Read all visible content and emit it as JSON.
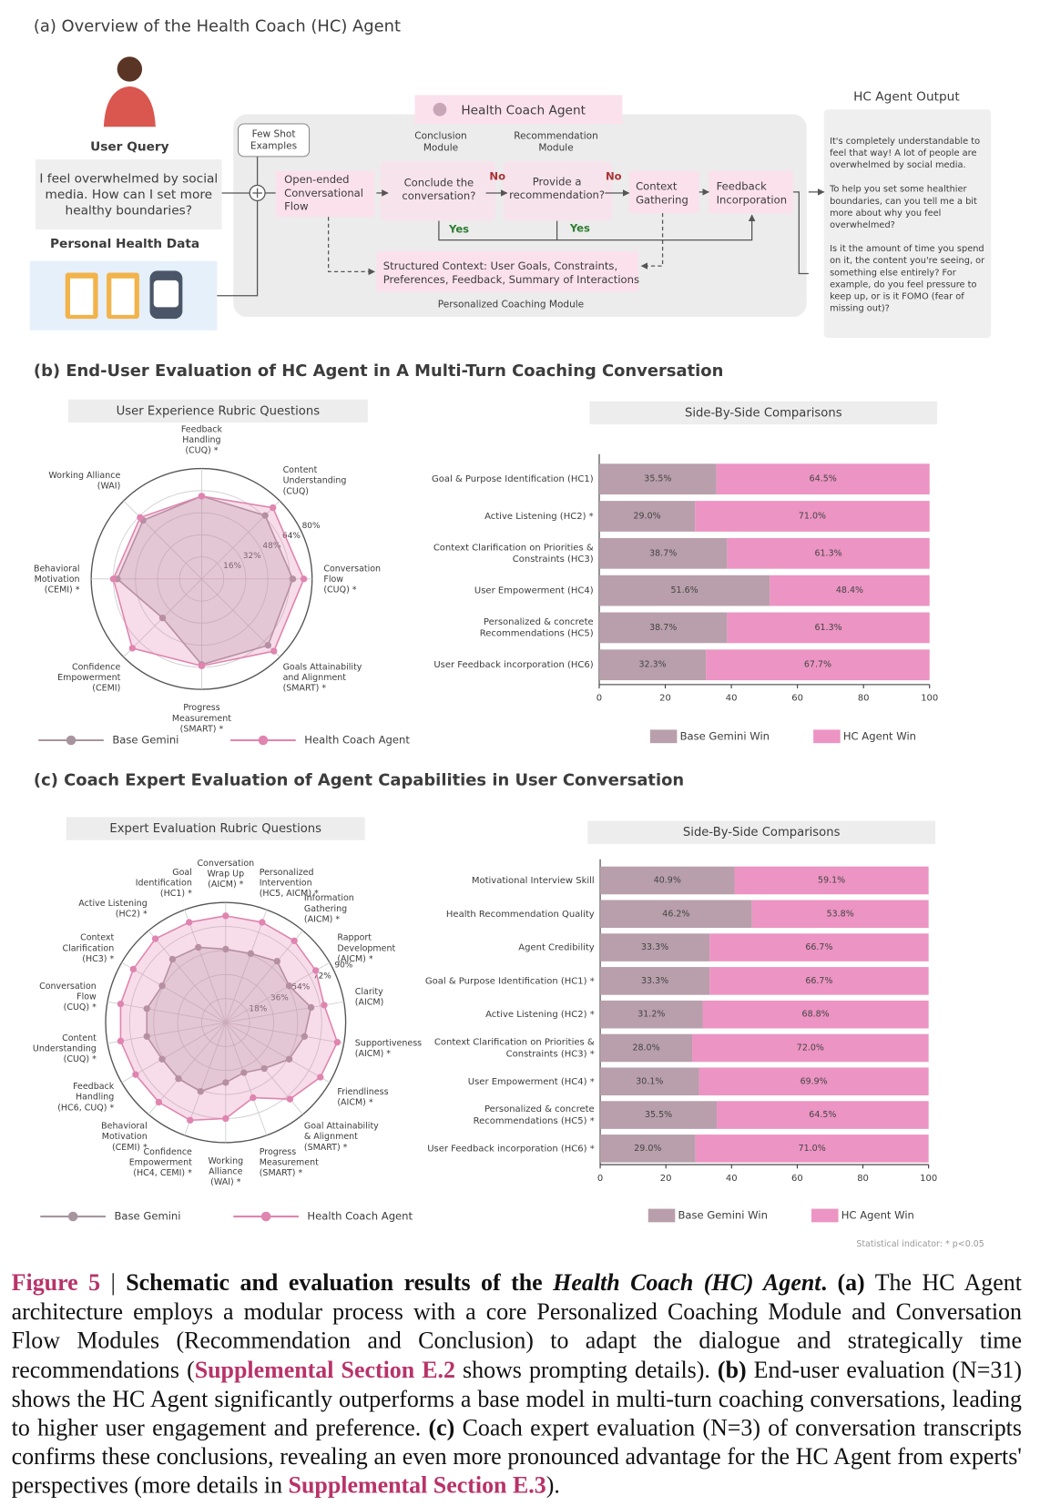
{
  "figure": {
    "panel_a": {
      "title": "(a) Overview of the Health Coach (HC) Agent",
      "user_query_label": "User Query",
      "user_query": "I feel overwhelmed by social\nmedia. How can I set more\nhealthy boundaries?",
      "personal_health_data": "Personal Health Data",
      "few_shot": "Few Shot\nExamples",
      "agent_title": "Health Coach Agent",
      "conclusion_module": "Conclusion\nModule",
      "recommendation_module": "Recommendation\nModule",
      "open_ended": "Open-ended\nConversational\nFlow",
      "conclude_q": "Conclude the\nconversation?",
      "provide_q": "Provide a\nrecommendation?",
      "no_1": "No",
      "no_2": "No",
      "yes_1": "Yes",
      "yes_2": "Yes",
      "context_gathering": "Context\nGathering",
      "feedback_incorporation": "Feedback\nIncorporation",
      "structured_context": "Structured Context: User Goals, Constraints,\nPreferences, Feedback, Summary of Interactions",
      "module_label": "Personalized Coaching Module",
      "output_title": "HC Agent Output",
      "output_paragraphs": [
        "It's completely understandable to\nfeel that way!  A lot of people are\noverwhelmed by social media.",
        "To help you set some healthier\nboundaries, can you tell me a bit\nmore about why you feel\noverwhelmed?",
        "Is it the amount of time you spend\non it, the content you're seeing, or\nsomething else entirely? For\nexample, do you feel pressure to\nkeep up, or is it FOMO (fear of\nmissing out)?"
      ]
    },
    "panel_b_title": "(b) End-User Evaluation of HC Agent in A Multi-Turn Coaching Conversation",
    "panel_c_title": "(c) Coach Expert Evaluation of Agent Capabilities in User Conversation",
    "stat_note": "Statistical indicator: * p<0.05",
    "caption": [
      {
        "text": "Figure 5",
        "style": "label"
      },
      {
        "text": " | ",
        "style": "plain"
      },
      {
        "text": "Schematic and evaluation results of the ",
        "style": "bold"
      },
      {
        "text": "Health Coach (HC) Agent",
        "style": "bold-italic"
      },
      {
        "text": ". ",
        "style": "bold"
      },
      {
        "text": "(a)",
        "style": "bold"
      },
      {
        "text": " The HC Agent architecture employs a modular process with a core Personalized Coaching Module and Conversation Flow Modules (Recommendation and Conclusion) to adapt the dialogue and strategically time recommendations (",
        "style": "plain"
      },
      {
        "text": "Supplemental Section E.2",
        "style": "link"
      },
      {
        "text": " shows prompting details). ",
        "style": "plain"
      },
      {
        "text": "(b)",
        "style": "bold"
      },
      {
        "text": " End-user evaluation (N=31) shows the HC Agent significantly outperforms a base model in multi-turn coaching conversations, leading to higher user engagement and preference. ",
        "style": "plain"
      },
      {
        "text": "(c)",
        "style": "bold"
      },
      {
        "text": " Coach expert evaluation (N=3) of conversation transcripts confirms these conclusions, revealing an even more pronounced advantage for the HC Agent from experts' perspectives (more details in ",
        "style": "plain"
      },
      {
        "text": "Supplemental Section E.3",
        "style": "link"
      },
      {
        "text": ").",
        "style": "plain"
      }
    ]
  },
  "chart_data": [
    {
      "type": "radar",
      "header": "User Experience Rubric Questions",
      "axes": [
        "Feedback\nHandling\n(CUQ) *",
        "Content\nUnderstanding\n(CUQ)",
        "Conversation\nFlow\n(CUQ) *",
        "Goals Attainability\nand Alignment\n(SMART) *",
        "Progress\nMeasurement\n(SMART) *",
        "Confidence\nEmpowerment\n(CEMI)",
        "Behavioral\nMotivation\n(CEMI) *",
        "Working Alliance\n(WAI)"
      ],
      "rlim": [
        0,
        80
      ],
      "rticks": [
        {
          "value": 16,
          "label": "16%"
        },
        {
          "value": 32,
          "label": "32%"
        },
        {
          "value": 48,
          "label": "48%"
        },
        {
          "value": 64,
          "label": "64%"
        },
        {
          "value": 80,
          "label": "80%"
        }
      ],
      "series": [
        {
          "name": "Base Gemini",
          "color": "#a8949e",
          "values": [
            60,
            65,
            66,
            68,
            62,
            40,
            61,
            60
          ]
        },
        {
          "name": "Health Coach Agent",
          "color": "#e084b0",
          "values": [
            60,
            73,
            74,
            74,
            63,
            71,
            64,
            63
          ]
        }
      ]
    },
    {
      "type": "bar",
      "header": "Side-By-Side Comparisons",
      "categories": [
        "Goal & Purpose Identification (HC1)",
        "Active Listening (HC2) *",
        "Context Clarification on Priorities &\nConstraints (HC3)",
        "User Empowerment (HC4)",
        "Personalized & concrete\nRecommendations (HC5)",
        "User Feedback incorporation (HC6)"
      ],
      "xlim": [
        0,
        100
      ],
      "xticks": [
        0,
        20,
        40,
        60,
        80,
        100
      ],
      "series": [
        {
          "name": "Base Gemini Win",
          "color": "#b89fab",
          "values": [
            35.5,
            29.0,
            38.7,
            51.6,
            38.7,
            32.3
          ],
          "value_labels": [
            "35.5%",
            "29.0%",
            "38.7%",
            "51.6%",
            "38.7%",
            "32.3%"
          ]
        },
        {
          "name": "HC Agent Win",
          "color": "#ec94c3",
          "values": [
            64.5,
            71.0,
            61.3,
            48.4,
            61.3,
            67.7
          ],
          "value_labels": [
            "64.5%",
            "71.0%",
            "61.3%",
            "48.4%",
            "61.3%",
            "67.7%"
          ]
        }
      ]
    },
    {
      "type": "radar",
      "header": "Expert Evaluation Rubric Questions",
      "axes": [
        "Conversation\nWrap Up\n(AICM) *",
        "Personalized\nIntervention\n(HC5, AICM) *",
        "Information\nGathering\n(AICM) *",
        "Rapport\nDevelopment\n(AICM) *",
        "Clarity\n(AICM)",
        "Supportiveness\n(AICM) *",
        "Friendliness\n(AICM) *",
        "Goal Attainability\n& Alignment\n(SMART) *",
        "Progress\nMeasurement\n(SMART) *",
        "Working\nAlliance\n(WAI) *",
        "Confidence\nEmpowerment\n(HC4, CEMI) *",
        "Behavioral\nMotivation\n(CEMI) *",
        "Feedback\nHandling\n(HC6, CUQ) *",
        "Content\nUnderstanding\n(CUQ) *",
        "Conversation\nFlow\n(CUQ) *",
        "Context\nClarification\n(HC3) *",
        "Active Listening\n(HC2) *",
        "Goal\nIdentification\n(HC1) *"
      ],
      "rlim": [
        0,
        90
      ],
      "rticks": [
        {
          "value": 18,
          "label": "18%"
        },
        {
          "value": 36,
          "label": "36%"
        },
        {
          "value": 54,
          "label": "54%"
        },
        {
          "value": 72,
          "label": "72%"
        },
        {
          "value": 90,
          "label": "90%"
        }
      ],
      "series": [
        {
          "name": "Base Gemini",
          "color": "#a8949e",
          "values": [
            55,
            55,
            60,
            55,
            65,
            60,
            55,
            45,
            40,
            45,
            55,
            55,
            55,
            60,
            60,
            55,
            62,
            60
          ]
        },
        {
          "name": "Health Coach Agent",
          "color": "#e084b0",
          "values": [
            80,
            80,
            80,
            78,
            75,
            85,
            82,
            75,
            60,
            72,
            78,
            78,
            78,
            80,
            80,
            80,
            82,
            80
          ]
        }
      ]
    },
    {
      "type": "bar",
      "header": "Side-By-Side Comparisons",
      "categories": [
        "Motivational Interview Skill",
        "Health Recommendation Quality",
        "Agent Credibility",
        "Goal & Purpose Identification (HC1) *",
        "Active Listening (HC2) *",
        "Context Clarification on Priorities &\nConstraints (HC3) *",
        "User Empowerment (HC4) *",
        "Personalized & concrete\nRecommendations (HC5) *",
        "User Feedback incorporation (HC6) *"
      ],
      "xlim": [
        0,
        100
      ],
      "xticks": [
        0,
        20,
        40,
        60,
        80,
        100
      ],
      "series": [
        {
          "name": "Base Gemini Win",
          "color": "#b89fab",
          "values": [
            40.9,
            46.2,
            33.3,
            33.3,
            31.2,
            28.0,
            30.1,
            35.5,
            29.0
          ],
          "value_labels": [
            "40.9%",
            "46.2%",
            "33.3%",
            "33.3%",
            "31.2%",
            "28.0%",
            "30.1%",
            "35.5%",
            "29.0%"
          ]
        },
        {
          "name": "HC Agent Win",
          "color": "#ec94c3",
          "values": [
            59.1,
            53.8,
            66.7,
            66.7,
            68.8,
            72.0,
            69.9,
            64.5,
            71.0
          ],
          "value_labels": [
            "59.1%",
            "53.8%",
            "66.7%",
            "66.7%",
            "68.8%",
            "72.0%",
            "69.9%",
            "64.5%",
            "71.0%"
          ]
        }
      ]
    }
  ]
}
